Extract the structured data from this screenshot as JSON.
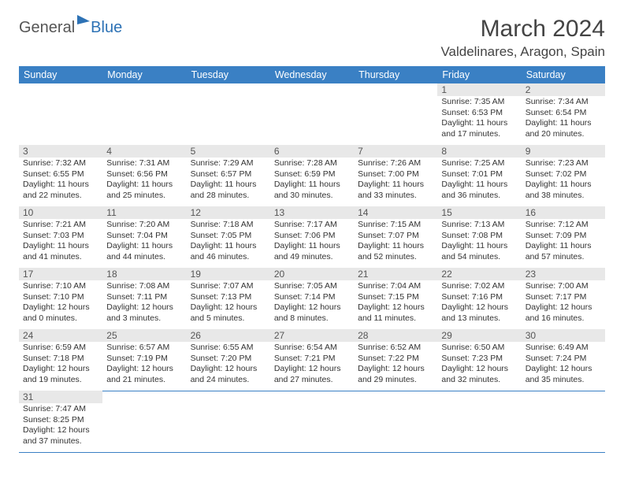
{
  "logo": {
    "general": "General",
    "blue": "Blue"
  },
  "title": "March 2024",
  "location": "Valdelinares, Aragon, Spain",
  "weekdays": [
    "Sunday",
    "Monday",
    "Tuesday",
    "Wednesday",
    "Thursday",
    "Friday",
    "Saturday"
  ],
  "header_bg": "#3a80c4",
  "daybar_bg": "#e8e8e8",
  "rule_color": "#3a80c4",
  "weeks": [
    [
      null,
      null,
      null,
      null,
      null,
      {
        "n": "1",
        "sr": "Sunrise: 7:35 AM",
        "ss": "Sunset: 6:53 PM",
        "d1": "Daylight: 11 hours",
        "d2": "and 17 minutes."
      },
      {
        "n": "2",
        "sr": "Sunrise: 7:34 AM",
        "ss": "Sunset: 6:54 PM",
        "d1": "Daylight: 11 hours",
        "d2": "and 20 minutes."
      }
    ],
    [
      {
        "n": "3",
        "sr": "Sunrise: 7:32 AM",
        "ss": "Sunset: 6:55 PM",
        "d1": "Daylight: 11 hours",
        "d2": "and 22 minutes."
      },
      {
        "n": "4",
        "sr": "Sunrise: 7:31 AM",
        "ss": "Sunset: 6:56 PM",
        "d1": "Daylight: 11 hours",
        "d2": "and 25 minutes."
      },
      {
        "n": "5",
        "sr": "Sunrise: 7:29 AM",
        "ss": "Sunset: 6:57 PM",
        "d1": "Daylight: 11 hours",
        "d2": "and 28 minutes."
      },
      {
        "n": "6",
        "sr": "Sunrise: 7:28 AM",
        "ss": "Sunset: 6:59 PM",
        "d1": "Daylight: 11 hours",
        "d2": "and 30 minutes."
      },
      {
        "n": "7",
        "sr": "Sunrise: 7:26 AM",
        "ss": "Sunset: 7:00 PM",
        "d1": "Daylight: 11 hours",
        "d2": "and 33 minutes."
      },
      {
        "n": "8",
        "sr": "Sunrise: 7:25 AM",
        "ss": "Sunset: 7:01 PM",
        "d1": "Daylight: 11 hours",
        "d2": "and 36 minutes."
      },
      {
        "n": "9",
        "sr": "Sunrise: 7:23 AM",
        "ss": "Sunset: 7:02 PM",
        "d1": "Daylight: 11 hours",
        "d2": "and 38 minutes."
      }
    ],
    [
      {
        "n": "10",
        "sr": "Sunrise: 7:21 AM",
        "ss": "Sunset: 7:03 PM",
        "d1": "Daylight: 11 hours",
        "d2": "and 41 minutes."
      },
      {
        "n": "11",
        "sr": "Sunrise: 7:20 AM",
        "ss": "Sunset: 7:04 PM",
        "d1": "Daylight: 11 hours",
        "d2": "and 44 minutes."
      },
      {
        "n": "12",
        "sr": "Sunrise: 7:18 AM",
        "ss": "Sunset: 7:05 PM",
        "d1": "Daylight: 11 hours",
        "d2": "and 46 minutes."
      },
      {
        "n": "13",
        "sr": "Sunrise: 7:17 AM",
        "ss": "Sunset: 7:06 PM",
        "d1": "Daylight: 11 hours",
        "d2": "and 49 minutes."
      },
      {
        "n": "14",
        "sr": "Sunrise: 7:15 AM",
        "ss": "Sunset: 7:07 PM",
        "d1": "Daylight: 11 hours",
        "d2": "and 52 minutes."
      },
      {
        "n": "15",
        "sr": "Sunrise: 7:13 AM",
        "ss": "Sunset: 7:08 PM",
        "d1": "Daylight: 11 hours",
        "d2": "and 54 minutes."
      },
      {
        "n": "16",
        "sr": "Sunrise: 7:12 AM",
        "ss": "Sunset: 7:09 PM",
        "d1": "Daylight: 11 hours",
        "d2": "and 57 minutes."
      }
    ],
    [
      {
        "n": "17",
        "sr": "Sunrise: 7:10 AM",
        "ss": "Sunset: 7:10 PM",
        "d1": "Daylight: 12 hours",
        "d2": "and 0 minutes."
      },
      {
        "n": "18",
        "sr": "Sunrise: 7:08 AM",
        "ss": "Sunset: 7:11 PM",
        "d1": "Daylight: 12 hours",
        "d2": "and 3 minutes."
      },
      {
        "n": "19",
        "sr": "Sunrise: 7:07 AM",
        "ss": "Sunset: 7:13 PM",
        "d1": "Daylight: 12 hours",
        "d2": "and 5 minutes."
      },
      {
        "n": "20",
        "sr": "Sunrise: 7:05 AM",
        "ss": "Sunset: 7:14 PM",
        "d1": "Daylight: 12 hours",
        "d2": "and 8 minutes."
      },
      {
        "n": "21",
        "sr": "Sunrise: 7:04 AM",
        "ss": "Sunset: 7:15 PM",
        "d1": "Daylight: 12 hours",
        "d2": "and 11 minutes."
      },
      {
        "n": "22",
        "sr": "Sunrise: 7:02 AM",
        "ss": "Sunset: 7:16 PM",
        "d1": "Daylight: 12 hours",
        "d2": "and 13 minutes."
      },
      {
        "n": "23",
        "sr": "Sunrise: 7:00 AM",
        "ss": "Sunset: 7:17 PM",
        "d1": "Daylight: 12 hours",
        "d2": "and 16 minutes."
      }
    ],
    [
      {
        "n": "24",
        "sr": "Sunrise: 6:59 AM",
        "ss": "Sunset: 7:18 PM",
        "d1": "Daylight: 12 hours",
        "d2": "and 19 minutes."
      },
      {
        "n": "25",
        "sr": "Sunrise: 6:57 AM",
        "ss": "Sunset: 7:19 PM",
        "d1": "Daylight: 12 hours",
        "d2": "and 21 minutes."
      },
      {
        "n": "26",
        "sr": "Sunrise: 6:55 AM",
        "ss": "Sunset: 7:20 PM",
        "d1": "Daylight: 12 hours",
        "d2": "and 24 minutes."
      },
      {
        "n": "27",
        "sr": "Sunrise: 6:54 AM",
        "ss": "Sunset: 7:21 PM",
        "d1": "Daylight: 12 hours",
        "d2": "and 27 minutes."
      },
      {
        "n": "28",
        "sr": "Sunrise: 6:52 AM",
        "ss": "Sunset: 7:22 PM",
        "d1": "Daylight: 12 hours",
        "d2": "and 29 minutes."
      },
      {
        "n": "29",
        "sr": "Sunrise: 6:50 AM",
        "ss": "Sunset: 7:23 PM",
        "d1": "Daylight: 12 hours",
        "d2": "and 32 minutes."
      },
      {
        "n": "30",
        "sr": "Sunrise: 6:49 AM",
        "ss": "Sunset: 7:24 PM",
        "d1": "Daylight: 12 hours",
        "d2": "and 35 minutes."
      }
    ],
    [
      {
        "n": "31",
        "sr": "Sunrise: 7:47 AM",
        "ss": "Sunset: 8:25 PM",
        "d1": "Daylight: 12 hours",
        "d2": "and 37 minutes."
      },
      null,
      null,
      null,
      null,
      null,
      null
    ]
  ]
}
